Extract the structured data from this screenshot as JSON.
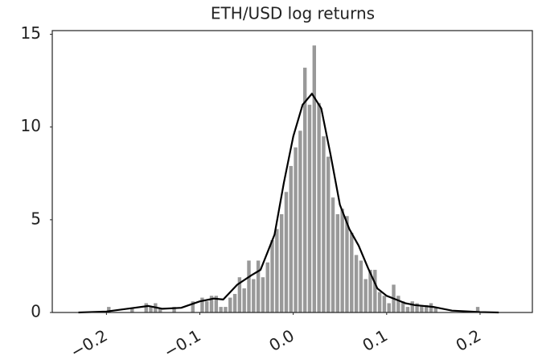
{
  "chart_data": {
    "type": "histogram",
    "title": "ETH/USD log returns",
    "bins": [
      -0.2,
      -0.195,
      -0.19,
      -0.185,
      -0.18,
      -0.175,
      -0.17,
      -0.165,
      -0.16,
      -0.155,
      -0.15,
      -0.145,
      -0.14,
      -0.135,
      -0.13,
      -0.125,
      -0.12,
      -0.115,
      -0.11,
      -0.105,
      -0.1,
      -0.095,
      -0.09,
      -0.085,
      -0.08,
      -0.075,
      -0.07,
      -0.065,
      -0.06,
      -0.055,
      -0.05,
      -0.045,
      -0.04,
      -0.035,
      -0.03,
      -0.025,
      -0.02,
      -0.015,
      -0.01,
      -0.005,
      0,
      0.005,
      0.01,
      0.015,
      0.02,
      0.025,
      0.03,
      0.035,
      0.04,
      0.045,
      0.05,
      0.055,
      0.06,
      0.065,
      0.07,
      0.075,
      0.08,
      0.085,
      0.09,
      0.095,
      0.1,
      0.105,
      0.11,
      0.115,
      0.12,
      0.125,
      0.13,
      0.135,
      0.14,
      0.145,
      0.15,
      0.155,
      0.16,
      0.165,
      0.17,
      0.175,
      0.18,
      0.185,
      0.19,
      0.195,
      0.2
    ],
    "values": [
      0.3,
      0,
      0,
      0,
      0,
      0.2,
      0,
      0,
      0.5,
      0.3,
      0.5,
      0.2,
      0,
      0,
      0.3,
      0,
      0,
      0,
      0.6,
      0,
      0.8,
      0.6,
      0.9,
      0.9,
      0.3,
      0.3,
      0.8,
      1.0,
      1.9,
      1.3,
      2.8,
      1.8,
      2.8,
      1.9,
      2.7,
      3.9,
      4.5,
      5.3,
      6.5,
      7.9,
      8.9,
      9.8,
      13.2,
      11.2,
      14.4,
      11.3,
      9.5,
      8.4,
      6.2,
      5.3,
      5.6,
      5.2,
      4.3,
      3.1,
      2.8,
      1.8,
      2.3,
      2.3,
      1.1,
      0.9,
      0.5,
      1.5,
      0.9,
      0.6,
      0.3,
      0.6,
      0.5,
      0.4,
      0.4,
      0.5,
      0.3,
      0,
      0,
      0,
      0,
      0,
      0,
      0,
      0,
      0.3
    ],
    "color": "#999999",
    "kde": {
      "color": "#000000",
      "x": [
        -0.23,
        -0.2,
        -0.17,
        -0.155,
        -0.14,
        -0.12,
        -0.1,
        -0.085,
        -0.075,
        -0.06,
        -0.045,
        -0.035,
        -0.02,
        -0.01,
        0.0,
        0.01,
        0.02,
        0.03,
        0.04,
        0.05,
        0.06,
        0.07,
        0.08,
        0.09,
        0.1,
        0.11,
        0.12,
        0.13,
        0.15,
        0.17,
        0.2,
        0.22
      ],
      "values": [
        0,
        0.05,
        0.25,
        0.35,
        0.2,
        0.25,
        0.6,
        0.75,
        0.7,
        1.5,
        2.0,
        2.3,
        4.2,
        7.0,
        9.5,
        11.2,
        11.8,
        11.0,
        8.5,
        5.8,
        4.5,
        3.6,
        2.4,
        1.3,
        0.9,
        0.7,
        0.5,
        0.4,
        0.3,
        0.1,
        0.02,
        0
      ]
    },
    "xlim": [
      -0.258,
      0.256
    ],
    "xticks": [
      {
        "value": -0.2,
        "label": "−0.2"
      },
      {
        "value": -0.1,
        "label": "−0.1"
      },
      {
        "value": 0,
        "label": "0.0"
      },
      0.1,
      0.2
    ],
    "ylim": [
      0,
      15.2
    ],
    "yticks": [
      0,
      5,
      10,
      15
    ]
  }
}
